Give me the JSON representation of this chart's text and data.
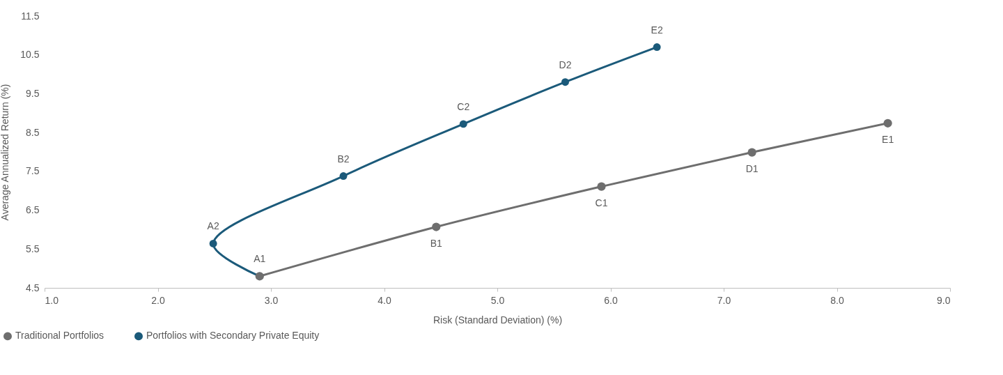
{
  "chart_data": {
    "type": "line",
    "xlabel": "Risk (Standard Deviation) (%)",
    "ylabel": "Average Annualized Return (%)",
    "series": [
      {
        "name": "Traditional Portfolios",
        "color": "#6e6e6e",
        "x": [
          2.9,
          4.46,
          5.92,
          7.25,
          8.45
        ],
        "values": [
          4.8,
          6.07,
          7.11,
          7.99,
          8.74
        ]
      },
      {
        "name": "Portfolios with Secondary Private Equity",
        "color": "#1b5a7a",
        "x": [
          2.9,
          2.49,
          3.64,
          4.7,
          5.6,
          6.41
        ],
        "values": [
          4.8,
          5.64,
          7.38,
          8.72,
          9.8,
          10.7
        ]
      }
    ],
    "xlim": [
      1,
      9
    ],
    "xticks": [
      {
        "value": 1,
        "label": "1.0"
      },
      {
        "value": 2,
        "label": "2.0"
      },
      {
        "value": 3,
        "label": "3.0"
      },
      {
        "value": 4,
        "label": "4.0"
      },
      {
        "value": 5,
        "label": "5.0"
      },
      {
        "value": 6,
        "label": "6.0"
      },
      {
        "value": 7,
        "label": "7.0"
      },
      {
        "value": 8,
        "label": "8.0"
      },
      {
        "value": 9,
        "label": "9.0"
      }
    ],
    "ylim": [
      4.5,
      11.5
    ],
    "yticks": [
      4.5,
      5.5,
      6.5,
      7.5,
      8.5,
      9.5,
      10.5,
      11.5
    ],
    "annotations": [
      {
        "text": "A1",
        "x": 2.9,
        "y": 4.8
      },
      {
        "text": "B1",
        "x": 4.46,
        "y": 6.07
      },
      {
        "text": "C1",
        "x": 5.92,
        "y": 7.11
      },
      {
        "text": "D1",
        "x": 7.25,
        "y": 7.99
      },
      {
        "text": "E1",
        "x": 8.45,
        "y": 8.74
      },
      {
        "text": "A2",
        "x": 2.49,
        "y": 5.64
      },
      {
        "text": "B2",
        "x": 3.64,
        "y": 7.38
      },
      {
        "text": "C2",
        "x": 4.7,
        "y": 8.72
      },
      {
        "text": "D2",
        "x": 5.6,
        "y": 9.8
      },
      {
        "text": "E2",
        "x": 6.41,
        "y": 10.7
      }
    ],
    "grid": false,
    "legend": "bottom left",
    "marker": "circle",
    "line_style": "solid"
  }
}
